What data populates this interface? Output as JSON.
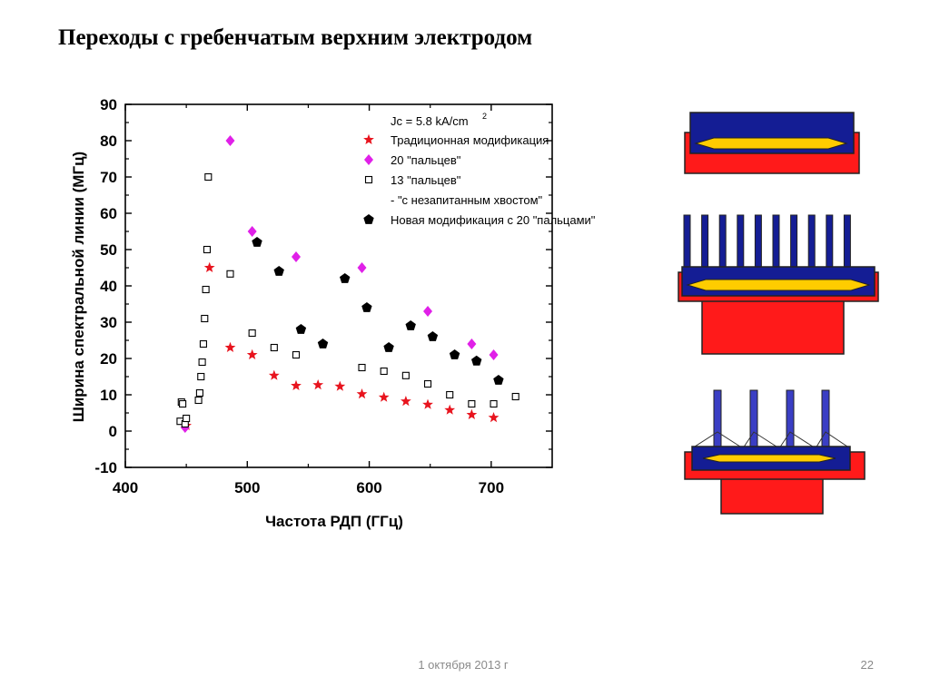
{
  "slide": {
    "title": "Переходы с гребенчатым верхним электродом",
    "footer_date": "1 октября 2013 г",
    "page_number": "22"
  },
  "chart_data": {
    "type": "scatter",
    "xlabel": "Частота РДП (ГГц)",
    "ylabel": "Ширина спектральной линии (МГц)",
    "xlim": [
      400,
      750
    ],
    "ylim": [
      -10,
      90
    ],
    "x_ticks": [
      400,
      500,
      600,
      700
    ],
    "y_ticks": [
      -10,
      0,
      10,
      20,
      30,
      40,
      50,
      60,
      70,
      80,
      90
    ],
    "grid": false,
    "legend_placement": "top-right",
    "legend_header": "Jc = 5.8 kA/cm",
    "legend_header_sup": "2",
    "legend_note": "- \"с незапитанным хвостом\"",
    "series": [
      {
        "name": "Традиционная модификация",
        "marker": "star",
        "color": "#e8141e",
        "points": [
          [
            450,
            1.5
          ],
          [
            469,
            45
          ],
          [
            486,
            23
          ],
          [
            504,
            21
          ],
          [
            522,
            15.3
          ],
          [
            540,
            12.5
          ],
          [
            558,
            12.7
          ],
          [
            576,
            12.3
          ],
          [
            594,
            10.2
          ],
          [
            612,
            9.3
          ],
          [
            630,
            8.2
          ],
          [
            648,
            7.3
          ],
          [
            666,
            5.8
          ],
          [
            684,
            4.5
          ],
          [
            702,
            3.7
          ]
        ]
      },
      {
        "name": "20 \"пальцев\"",
        "marker": "diamond",
        "color": "#e020e8",
        "points": [
          [
            449,
            1
          ],
          [
            486,
            80
          ],
          [
            504,
            55
          ],
          [
            540,
            48
          ],
          [
            594,
            45
          ],
          [
            648,
            33
          ],
          [
            684,
            24
          ],
          [
            702,
            21
          ]
        ]
      },
      {
        "name": "13 \"пальцев\"",
        "marker": "open-square",
        "color": "#000000",
        "points": [
          [
            445,
            2.7
          ],
          [
            446,
            8
          ],
          [
            447,
            7.5
          ],
          [
            449,
            2
          ],
          [
            450,
            3.5
          ],
          [
            460,
            8.5
          ],
          [
            461,
            10.5
          ],
          [
            462,
            15
          ],
          [
            463,
            19
          ],
          [
            464,
            24
          ],
          [
            465,
            31
          ],
          [
            466,
            39
          ],
          [
            467,
            50
          ],
          [
            468,
            70
          ],
          [
            486,
            43.3
          ],
          [
            504,
            27
          ],
          [
            522,
            23
          ],
          [
            540,
            21
          ],
          [
            594,
            17.5
          ],
          [
            612,
            16.5
          ],
          [
            630,
            15.3
          ],
          [
            648,
            13
          ],
          [
            666,
            10
          ],
          [
            684,
            7.5
          ],
          [
            702,
            7.5
          ],
          [
            720,
            9.5
          ]
        ]
      },
      {
        "name": "Новая модификация с 20 \"пальцами\"",
        "marker": "pentagon",
        "color": "#000000",
        "points": [
          [
            508,
            52
          ],
          [
            526,
            44
          ],
          [
            544,
            28
          ],
          [
            562,
            24
          ],
          [
            580,
            42
          ],
          [
            598,
            34
          ],
          [
            616,
            23
          ],
          [
            634,
            29
          ],
          [
            652,
            26
          ],
          [
            670,
            21
          ],
          [
            688,
            19.3
          ],
          [
            706,
            14
          ]
        ]
      }
    ]
  },
  "diagrams": {
    "colors": {
      "blue": "#141d94",
      "red": "#ff1a1a",
      "yellow": "#ffcc00",
      "finger_blue": "#3a3ec4"
    },
    "items": [
      {
        "name": "traditional",
        "fingers": 0
      },
      {
        "name": "comb-20-fingers",
        "fingers": 10
      },
      {
        "name": "comb-with-tail",
        "fingers": 4
      }
    ]
  }
}
